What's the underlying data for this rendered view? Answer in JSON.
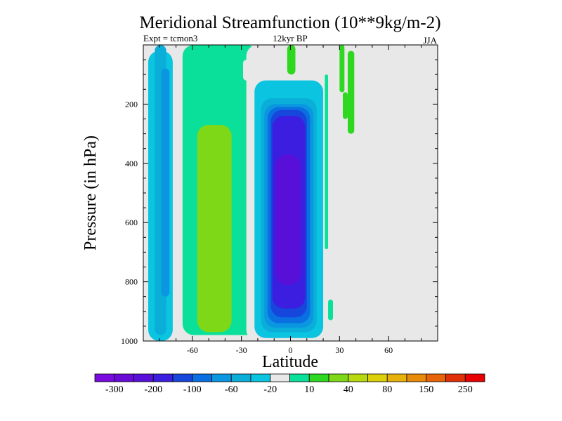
{
  "chart_data": {
    "type": "heatmap",
    "title": "Meridional Streamfunction (10**9kg/m-2)",
    "left_string": "Expt = tcmon3",
    "center_string": "12kyr BP",
    "right_string": "JJA",
    "xlabel": "Latitude",
    "ylabel": "Pressure (in hPa)",
    "xlim": [
      -90,
      90
    ],
    "ylim": [
      1000,
      0
    ],
    "xticks": [
      -60,
      -30,
      0,
      30,
      60
    ],
    "yticks": [
      200,
      400,
      600,
      800,
      1000
    ],
    "colorbar": {
      "labels": [
        "-300",
        "-200",
        "-100",
        "-60",
        "-20",
        "10",
        "40",
        "80",
        "150",
        "250"
      ],
      "colors": [
        "#7a0ae0",
        "#6a0ad6",
        "#5810d8",
        "#3b1ee0",
        "#1646dc",
        "#0a6fe0",
        "#0a96e0",
        "#0aaed8",
        "#0ac4e0",
        "#e8e8e8",
        "#0ae09a",
        "#2ed820",
        "#7ed818",
        "#b8d810",
        "#dcd00a",
        "#e8b00a",
        "#e88a0a",
        "#e8640a",
        "#e0300a",
        "#e80000"
      ]
    },
    "cells": [
      {
        "lon": [
          -87,
          -72
        ],
        "p": [
          20,
          1000
        ],
        "v": -30
      },
      {
        "lon": [
          -83,
          -76
        ],
        "p": [
          0,
          980
        ],
        "v": -60
      },
      {
        "lon": [
          -79,
          -74
        ],
        "p": [
          80,
          850
        ],
        "v": -80
      },
      {
        "lon": [
          -68,
          -59
        ],
        "p": [
          0,
          980
        ],
        "v": -15
      },
      {
        "lon": [
          -66,
          -20
        ],
        "p": [
          0,
          980
        ],
        "v": 5
      },
      {
        "lon": [
          -57,
          -36
        ],
        "p": [
          270,
          970
        ],
        "v": 20
      },
      {
        "lon": [
          -56,
          -38
        ],
        "p": [
          300,
          940
        ],
        "v": 35
      },
      {
        "lon": [
          -27,
          22
        ],
        "p": [
          0,
          1000
        ],
        "v": -10
      },
      {
        "lon": [
          -29,
          -20
        ],
        "p": [
          50,
          120
        ],
        "v": -20
      },
      {
        "lon": [
          -2,
          3
        ],
        "p": [
          0,
          100
        ],
        "v": 10
      },
      {
        "lon": [
          15,
          22
        ],
        "p": [
          0,
          150
        ],
        "v": -15
      },
      {
        "lon": [
          -22,
          20
        ],
        "p": [
          120,
          990
        ],
        "v": -25
      },
      {
        "lon": [
          -20,
          18
        ],
        "p": [
          160,
          980
        ],
        "v": -40
      },
      {
        "lon": [
          -18,
          16
        ],
        "p": [
          180,
          970
        ],
        "v": -60
      },
      {
        "lon": [
          -16,
          14
        ],
        "p": [
          200,
          955
        ],
        "v": -80
      },
      {
        "lon": [
          -14,
          12
        ],
        "p": [
          210,
          940
        ],
        "v": -100
      },
      {
        "lon": [
          -12,
          10
        ],
        "p": [
          220,
          920
        ],
        "v": -150
      },
      {
        "lon": [
          -11,
          9
        ],
        "p": [
          240,
          890
        ],
        "v": -200
      },
      {
        "lon": [
          -9,
          6
        ],
        "p": [
          370,
          810
        ],
        "v": -250
      },
      {
        "lon": [
          30,
          33
        ],
        "p": [
          0,
          160
        ],
        "v": 10
      },
      {
        "lon": [
          32,
          35
        ],
        "p": [
          160,
          250
        ],
        "v": 10
      },
      {
        "lon": [
          35,
          39
        ],
        "p": [
          20,
          300
        ],
        "v": 10
      },
      {
        "lon": [
          21,
          23
        ],
        "p": [
          100,
          690
        ],
        "v": 8
      },
      {
        "lon": [
          23,
          26
        ],
        "p": [
          860,
          930
        ],
        "v": 8
      }
    ]
  }
}
